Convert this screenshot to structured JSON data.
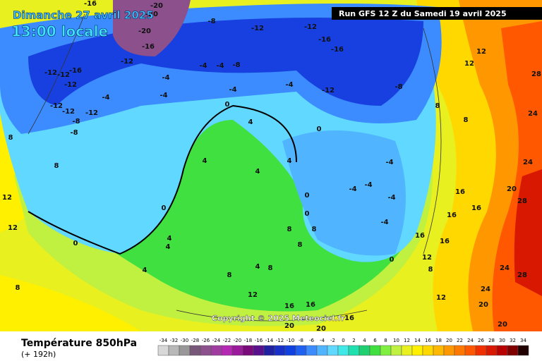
{
  "header": {
    "date": "Dimanche 27 avril 2025",
    "time": "13:00 locale",
    "run": "Run GFS 12 Z du Samedi 19 avril 2025",
    "copyright": "Copyright © 2025 Meteociel.fr"
  },
  "footer": {
    "title": "Température 850hPa",
    "lead": "(+ 192h)"
  },
  "legend": {
    "ticks": [
      -34,
      -32,
      -30,
      -28,
      -26,
      -24,
      -22,
      -20,
      -18,
      -16,
      -14,
      -12,
      -10,
      -8,
      -6,
      -4,
      -2,
      0,
      2,
      4,
      6,
      8,
      10,
      12,
      14,
      16,
      18,
      20,
      22,
      24,
      26,
      28,
      30,
      32,
      34
    ],
    "colors": [
      "#d8d8d8",
      "#b8b8b8",
      "#989898",
      "#785878",
      "#8c508c",
      "#a03ca0",
      "#b428b4",
      "#9b1a9b",
      "#7a0a7a",
      "#58108c",
      "#2020a0",
      "#1830c8",
      "#1040e0",
      "#2060f0",
      "#3c8cff",
      "#50b4ff",
      "#60d8ff",
      "#40e8e8",
      "#20e0b0",
      "#20d070",
      "#40e040",
      "#80f040",
      "#c0f040",
      "#e8f020",
      "#fff000",
      "#ffd800",
      "#ffb800",
      "#ff9800",
      "#ff7800",
      "#ff5800",
      "#f03000",
      "#d81800",
      "#b80000",
      "#800000",
      "#200000"
    ]
  },
  "map": {
    "contour_labels": [
      "-20",
      "-20",
      "-20",
      "-16",
      "-16",
      "-8",
      "-12",
      "-12",
      "-16",
      "-16",
      "-12",
      "-12",
      "-12",
      "-16",
      "-12",
      "-12",
      "-12",
      "-12",
      "-8",
      "-8",
      "-4",
      "-4",
      "-4",
      "-4",
      "-8",
      "-4",
      "-4",
      "-4",
      "-12",
      "-8",
      "0",
      "0",
      "4",
      "4",
      "0",
      "0",
      "4",
      "4",
      "-4",
      "-4",
      "-4",
      "0",
      "0",
      "-4",
      "-4",
      "16",
      "16",
      "16",
      "20",
      "24",
      "24",
      "28",
      "28",
      "28",
      "24",
      "24",
      "20",
      "20",
      "12",
      "12",
      "8",
      "8",
      "8",
      "8",
      "12",
      "12",
      "8",
      "4",
      "4",
      "4",
      "8",
      "8",
      "8",
      "4",
      "8",
      "8",
      "12",
      "16",
      "16",
      "16",
      "20",
      "20",
      "0",
      "12",
      "8",
      "12",
      "16",
      "16"
    ]
  }
}
